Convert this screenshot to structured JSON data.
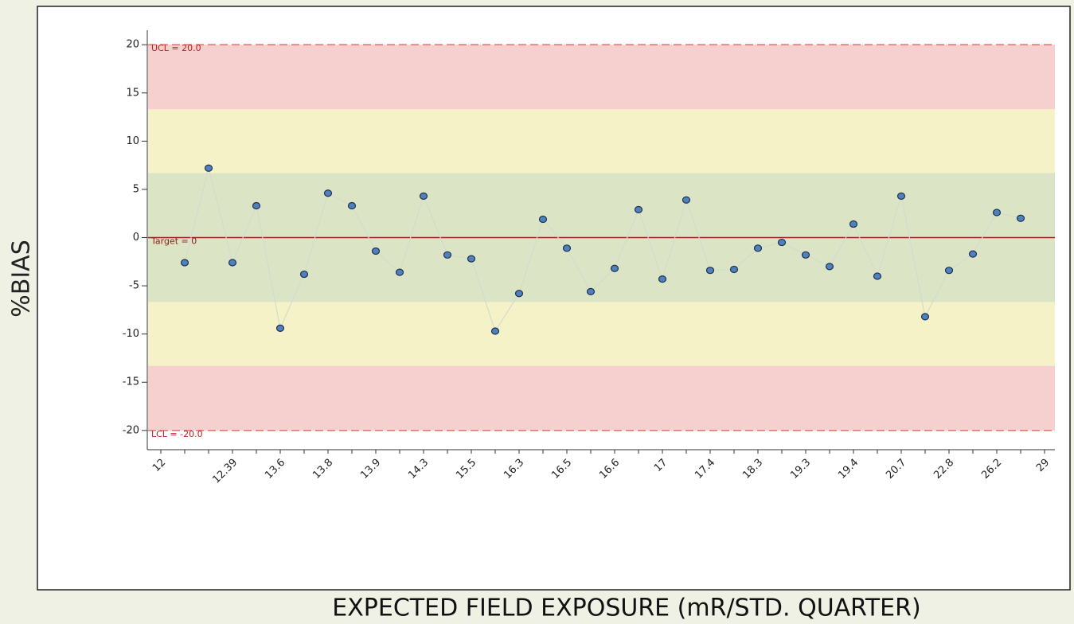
{
  "chart_data": {
    "type": "control",
    "y_label": "%BIAS",
    "x_label": "EXPECTED FIELD EXPOSURE (mR/STD. QUARTER)",
    "categories": [
      "12",
      null,
      null,
      "12.39",
      null,
      "13.6",
      null,
      "13.8",
      null,
      "13.9",
      null,
      "14.3",
      null,
      "15.5",
      null,
      "16.3",
      null,
      "16.5",
      null,
      "16.6",
      null,
      "17",
      null,
      "17.4",
      null,
      "18.3",
      null,
      "19.3",
      null,
      "19.4",
      null,
      "20.7",
      null,
      "22.8",
      null,
      "26.2",
      null,
      "29"
    ],
    "values": [
      null,
      -2.6,
      7.2,
      -2.6,
      3.3,
      -9.4,
      -3.8,
      4.6,
      3.3,
      -1.4,
      -3.6,
      4.3,
      -1.8,
      -2.2,
      -9.7,
      -5.8,
      1.9,
      -1.1,
      -5.6,
      -3.2,
      2.9,
      -4.3,
      3.9,
      -3.4,
      -3.3,
      -1.1,
      -0.5,
      -1.8,
      -3.0,
      1.4,
      -4.0,
      4.3,
      -8.2,
      -3.4,
      -1.7,
      2.6,
      2.0,
      null
    ],
    "color": "#4f81bd",
    "line_color": "#d3dccb",
    "ylim": [
      -21.5,
      21.5
    ],
    "yticks": [
      -20,
      -15,
      -10,
      -5,
      0,
      5,
      10,
      15,
      20
    ],
    "zones": [
      {
        "from": 13.3,
        "to": 20,
        "color": "#f6cfcf"
      },
      {
        "from": 6.7,
        "to": 13.3,
        "color": "#f5f2c8"
      },
      {
        "from": -6.7,
        "to": 6.7,
        "color": "#dbe5c6"
      },
      {
        "from": -13.3,
        "to": -6.7,
        "color": "#f5f2c8"
      },
      {
        "from": -20,
        "to": -13.3,
        "color": "#f6cfcf"
      }
    ],
    "control_lines": [
      {
        "label": "UCL = 20.0",
        "value": 20,
        "color": "#e07070",
        "dashed": true
      },
      {
        "label": "Target = 0",
        "value": 0,
        "color": "#a02020",
        "dashed": false
      },
      {
        "label": "LCL = -20.0",
        "value": -20,
        "color": "#e07070",
        "dashed": true
      }
    ]
  }
}
